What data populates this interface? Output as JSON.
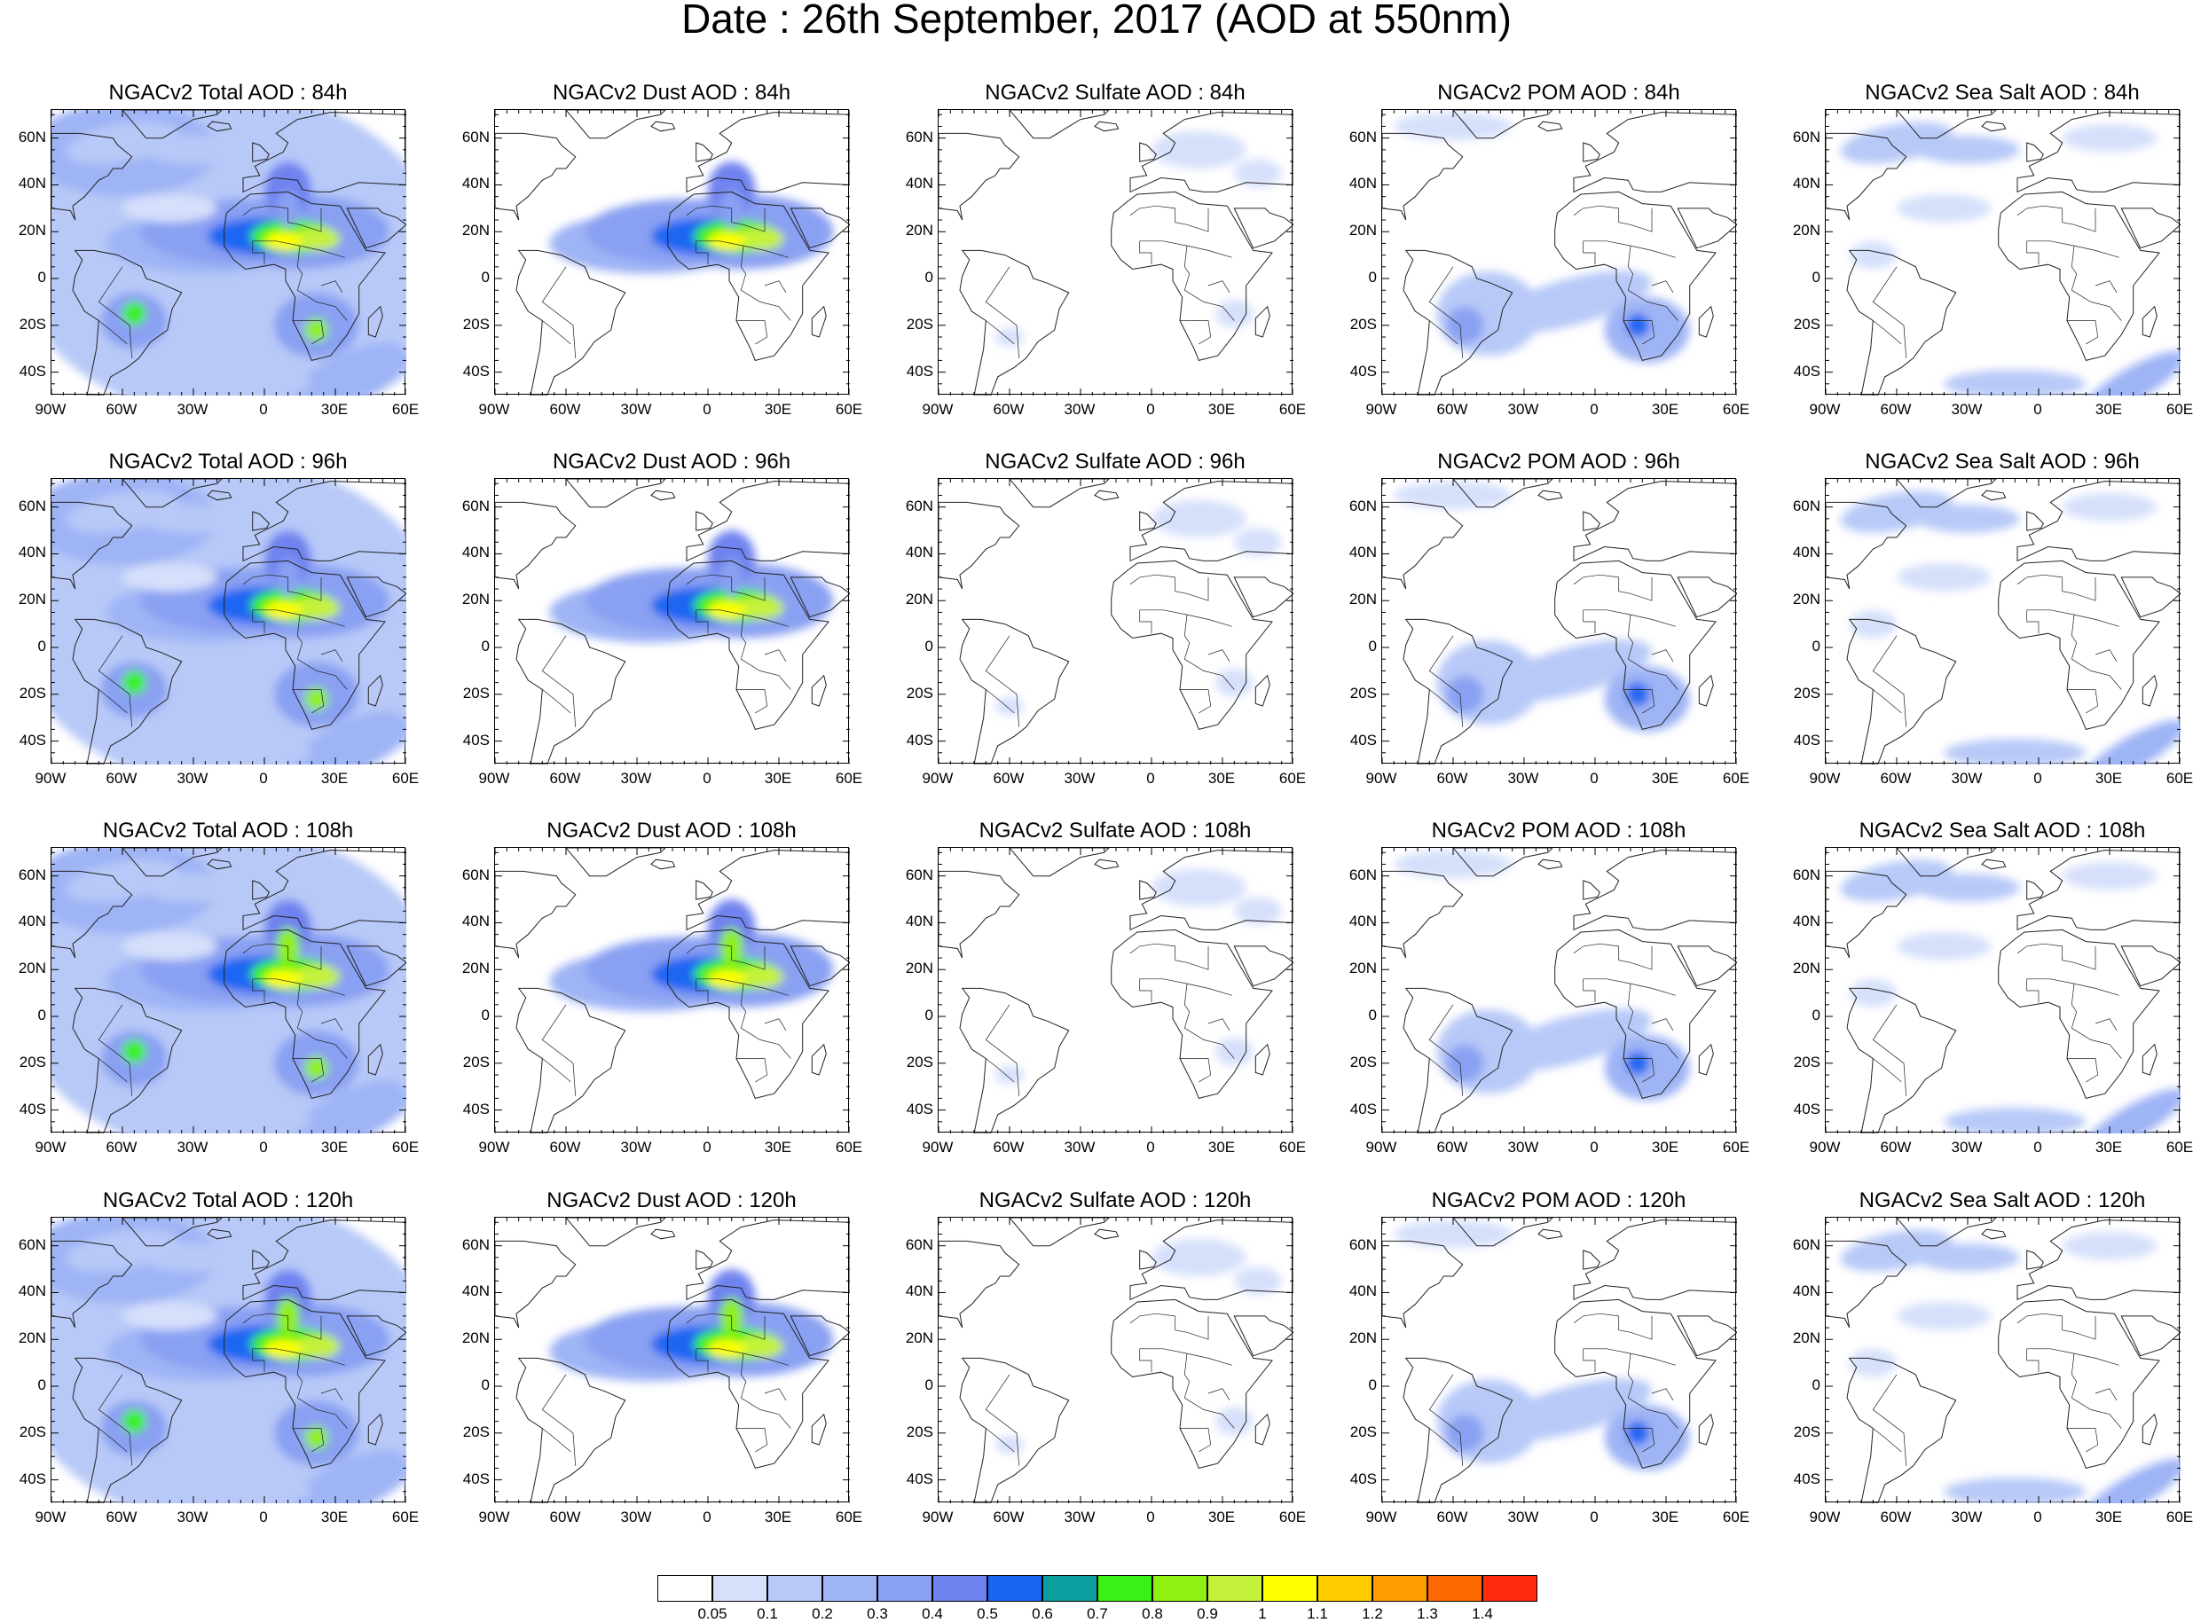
{
  "title": "Date : 26th September, 2017 (AOD at 550nm)",
  "axis_labels": {
    "lat": [
      "60N",
      "40N",
      "20N",
      "0",
      "20S",
      "40S"
    ],
    "lon": [
      "90W",
      "60W",
      "30W",
      "0",
      "30E",
      "60E"
    ]
  },
  "panels": [
    {
      "title": "NGACv2 Total AOD : 84h",
      "species": "total",
      "lead_hours": 84
    },
    {
      "title": "NGACv2 Dust AOD : 84h",
      "species": "dust",
      "lead_hours": 84
    },
    {
      "title": "NGACv2 Sulfate AOD : 84h",
      "species": "sulfate",
      "lead_hours": 84
    },
    {
      "title": "NGACv2 POM AOD : 84h",
      "species": "pom",
      "lead_hours": 84
    },
    {
      "title": "NGACv2 Sea Salt AOD : 84h",
      "species": "seasalt",
      "lead_hours": 84
    },
    {
      "title": "NGACv2 Total AOD : 96h",
      "species": "total",
      "lead_hours": 96
    },
    {
      "title": "NGACv2 Dust AOD : 96h",
      "species": "dust",
      "lead_hours": 96
    },
    {
      "title": "NGACv2 Sulfate AOD : 96h",
      "species": "sulfate",
      "lead_hours": 96
    },
    {
      "title": "NGACv2 POM AOD : 96h",
      "species": "pom",
      "lead_hours": 96
    },
    {
      "title": "NGACv2 Sea Salt AOD : 96h",
      "species": "seasalt",
      "lead_hours": 96
    },
    {
      "title": "NGACv2 Total AOD : 108h",
      "species": "total",
      "lead_hours": 108
    },
    {
      "title": "NGACv2 Dust AOD : 108h",
      "species": "dust",
      "lead_hours": 108
    },
    {
      "title": "NGACv2 Sulfate AOD : 108h",
      "species": "sulfate",
      "lead_hours": 108
    },
    {
      "title": "NGACv2 POM AOD : 108h",
      "species": "pom",
      "lead_hours": 108
    },
    {
      "title": "NGACv2 Sea Salt AOD : 108h",
      "species": "seasalt",
      "lead_hours": 108
    },
    {
      "title": "NGACv2 Total AOD : 120h",
      "species": "total",
      "lead_hours": 120
    },
    {
      "title": "NGACv2 Dust AOD : 120h",
      "species": "dust",
      "lead_hours": 120
    },
    {
      "title": "NGACv2 Sulfate AOD : 120h",
      "species": "sulfate",
      "lead_hours": 120
    },
    {
      "title": "NGACv2 POM AOD : 120h",
      "species": "pom",
      "lead_hours": 120
    },
    {
      "title": "NGACv2 Sea Salt  AOD : 120h",
      "species": "seasalt",
      "lead_hours": 120
    }
  ],
  "colorbar": {
    "colors": [
      "#ffffff",
      "#d6e0fb",
      "#b8c9f8",
      "#9fb4f5",
      "#8aa0f2",
      "#6f82ef",
      "#1a66f2",
      "#0b9e9e",
      "#3bf014",
      "#8ff014",
      "#c4f23a",
      "#ffff00",
      "#ffcc00",
      "#ff9e00",
      "#ff6a00",
      "#ff2a10"
    ],
    "labels": [
      "0.05",
      "0.1",
      "0.2",
      "0.3",
      "0.4",
      "0.5",
      "0.6",
      "0.7",
      "0.8",
      "0.9",
      "1",
      "1.1",
      "1.2",
      "1.3",
      "1.4"
    ]
  }
}
